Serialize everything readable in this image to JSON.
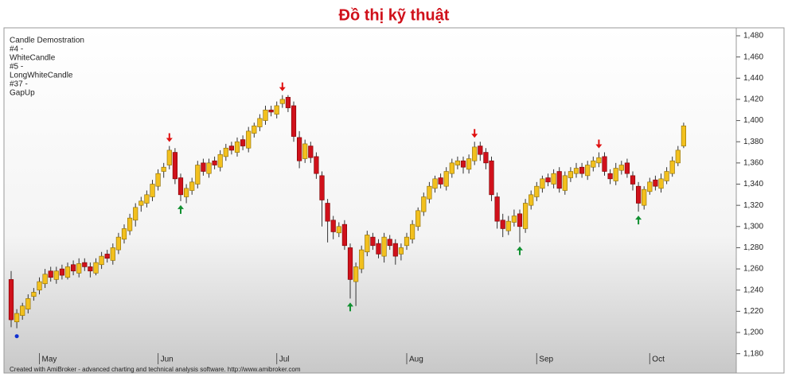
{
  "chart_data": {
    "type": "candlestick",
    "title": "Đồ thị kỹ thuật",
    "legend_text": [
      "Candle Demostration",
      "#4 -",
      "WhiteCandle",
      "#5 -",
      "LongWhiteCandle",
      "#37 -",
      "GapUp"
    ],
    "footer": "Created with AmiBroker - advanced charting and technical analysis software. http://www.amibroker.com",
    "categories": [
      null,
      null,
      null,
      null,
      null,
      "May",
      null,
      null,
      null,
      null,
      null,
      null,
      null,
      null,
      null,
      null,
      null,
      null,
      null,
      null,
      null,
      null,
      null,
      null,
      null,
      null,
      "Jun",
      null,
      null,
      null,
      null,
      null,
      null,
      null,
      null,
      null,
      null,
      null,
      null,
      null,
      null,
      null,
      null,
      null,
      null,
      null,
      null,
      "Jul",
      null,
      null,
      null,
      null,
      null,
      null,
      null,
      null,
      null,
      null,
      null,
      null,
      null,
      null,
      null,
      null,
      null,
      null,
      null,
      null,
      null,
      null,
      "Aug",
      null,
      null,
      null,
      null,
      null,
      null,
      null,
      null,
      null,
      null,
      null,
      null,
      null,
      null,
      null,
      null,
      null,
      null,
      null,
      null,
      null,
      null,
      "Sep",
      null,
      null,
      null,
      null,
      null,
      null,
      null,
      null,
      null,
      null,
      null,
      null,
      null,
      null,
      null,
      null,
      null,
      null,
      null,
      "Oct",
      null,
      null,
      null,
      null,
      null,
      null
    ],
    "open": [
      1250,
      1210,
      1216,
      1222,
      1234,
      1240,
      1246,
      1258,
      1250,
      1260,
      1252,
      1264,
      1256,
      1266,
      1262,
      1256,
      1264,
      1274,
      1268,
      1278,
      1288,
      1296,
      1306,
      1320,
      1322,
      1328,
      1338,
      1352,
      1358,
      1370,
      1346,
      1328,
      1334,
      1340,
      1360,
      1350,
      1362,
      1356,
      1366,
      1376,
      1370,
      1382,
      1374,
      1388,
      1394,
      1400,
      1410,
      1406,
      1416,
      1422,
      1414,
      1384,
      1364,
      1376,
      1366,
      1348,
      1322,
      1306,
      1294,
      1302,
      1280,
      1248,
      1260,
      1276,
      1290,
      1284,
      1272,
      1288,
      1284,
      1274,
      1282,
      1288,
      1300,
      1314,
      1326,
      1336,
      1346,
      1338,
      1350,
      1358,
      1362,
      1354,
      1362,
      1376,
      1370,
      1362,
      1328,
      1306,
      1296,
      1304,
      1312,
      1298,
      1320,
      1328,
      1336,
      1346,
      1340,
      1352,
      1334,
      1346,
      1350,
      1356,
      1348,
      1356,
      1360,
      1366,
      1350,
      1343,
      1353,
      1360,
      1348,
      1338,
      1320,
      1333,
      1344,
      1336,
      1343,
      1350,
      1360,
      1376
    ],
    "high": [
      1258,
      1222,
      1228,
      1236,
      1242,
      1252,
      1260,
      1262,
      1262,
      1264,
      1266,
      1268,
      1270,
      1270,
      1266,
      1270,
      1276,
      1278,
      1284,
      1294,
      1302,
      1312,
      1322,
      1328,
      1334,
      1344,
      1354,
      1360,
      1376,
      1374,
      1350,
      1340,
      1346,
      1362,
      1364,
      1364,
      1366,
      1372,
      1378,
      1380,
      1384,
      1386,
      1394,
      1398,
      1406,
      1414,
      1414,
      1418,
      1424,
      1424,
      1418,
      1390,
      1382,
      1380,
      1370,
      1352,
      1326,
      1310,
      1304,
      1306,
      1284,
      1266,
      1282,
      1296,
      1294,
      1288,
      1294,
      1292,
      1288,
      1284,
      1294,
      1306,
      1318,
      1332,
      1342,
      1348,
      1350,
      1356,
      1364,
      1366,
      1366,
      1368,
      1380,
      1380,
      1374,
      1366,
      1332,
      1312,
      1310,
      1316,
      1316,
      1326,
      1334,
      1342,
      1348,
      1350,
      1354,
      1356,
      1352,
      1356,
      1360,
      1360,
      1362,
      1366,
      1370,
      1370,
      1354,
      1360,
      1362,
      1364,
      1352,
      1342,
      1338,
      1346,
      1348,
      1350,
      1356,
      1366,
      1376,
      1398
    ],
    "low": [
      1205,
      1204,
      1212,
      1218,
      1230,
      1236,
      1242,
      1248,
      1246,
      1250,
      1250,
      1254,
      1252,
      1258,
      1252,
      1254,
      1260,
      1266,
      1264,
      1274,
      1284,
      1292,
      1300,
      1314,
      1318,
      1324,
      1334,
      1346,
      1354,
      1340,
      1324,
      1322,
      1330,
      1336,
      1348,
      1346,
      1354,
      1352,
      1362,
      1368,
      1366,
      1372,
      1370,
      1384,
      1390,
      1396,
      1404,
      1402,
      1412,
      1408,
      1380,
      1355,
      1360,
      1360,
      1345,
      1300,
      1285,
      1288,
      1290,
      1278,
      1232,
      1225,
      1256,
      1272,
      1278,
      1270,
      1266,
      1278,
      1264,
      1268,
      1278,
      1284,
      1296,
      1310,
      1322,
      1332,
      1336,
      1334,
      1346,
      1354,
      1350,
      1350,
      1358,
      1362,
      1354,
      1324,
      1298,
      1290,
      1292,
      1300,
      1285,
      1294,
      1316,
      1324,
      1332,
      1338,
      1336,
      1332,
      1330,
      1342,
      1346,
      1346,
      1344,
      1352,
      1356,
      1348,
      1340,
      1339,
      1349,
      1346,
      1334,
      1314,
      1316,
      1330,
      1334,
      1332,
      1340,
      1347,
      1357,
      1374
    ],
    "close": [
      1212,
      1218,
      1225,
      1232,
      1238,
      1248,
      1255,
      1252,
      1258,
      1254,
      1262,
      1258,
      1265,
      1262,
      1258,
      1266,
      1272,
      1270,
      1280,
      1290,
      1298,
      1308,
      1318,
      1324,
      1330,
      1340,
      1350,
      1356,
      1372,
      1345,
      1330,
      1336,
      1342,
      1358,
      1352,
      1360,
      1358,
      1368,
      1374,
      1372,
      1380,
      1376,
      1390,
      1395,
      1402,
      1410,
      1408,
      1414,
      1420,
      1412,
      1385,
      1362,
      1378,
      1365,
      1350,
      1325,
      1305,
      1295,
      1300,
      1282,
      1250,
      1262,
      1278,
      1292,
      1282,
      1274,
      1290,
      1282,
      1272,
      1280,
      1290,
      1302,
      1315,
      1328,
      1338,
      1345,
      1340,
      1352,
      1360,
      1362,
      1356,
      1364,
      1375,
      1368,
      1360,
      1330,
      1305,
      1298,
      1305,
      1310,
      1300,
      1322,
      1330,
      1338,
      1345,
      1342,
      1350,
      1336,
      1348,
      1352,
      1355,
      1350,
      1358,
      1362,
      1365,
      1352,
      1345,
      1355,
      1358,
      1350,
      1340,
      1322,
      1335,
      1342,
      1338,
      1345,
      1352,
      1362,
      1372,
      1395
    ],
    "signal": [
      null,
      "dot",
      null,
      null,
      null,
      null,
      null,
      null,
      null,
      null,
      null,
      null,
      null,
      null,
      null,
      null,
      null,
      null,
      null,
      null,
      null,
      null,
      null,
      null,
      null,
      null,
      null,
      null,
      "sell",
      null,
      "buy",
      null,
      null,
      null,
      null,
      null,
      null,
      null,
      null,
      null,
      null,
      null,
      null,
      null,
      null,
      null,
      null,
      null,
      "sell",
      null,
      null,
      null,
      null,
      null,
      null,
      null,
      null,
      null,
      null,
      null,
      "buy",
      null,
      null,
      null,
      null,
      null,
      null,
      null,
      null,
      null,
      null,
      null,
      null,
      null,
      null,
      null,
      null,
      null,
      null,
      null,
      null,
      null,
      "sell",
      null,
      null,
      null,
      null,
      null,
      null,
      null,
      "buy",
      null,
      null,
      null,
      null,
      null,
      null,
      null,
      null,
      null,
      null,
      null,
      null,
      null,
      "sell",
      null,
      null,
      null,
      null,
      null,
      null,
      "buy",
      null,
      null,
      null,
      null,
      null,
      null,
      null,
      null
    ],
    "up_color": "#f2c01e",
    "down_color": "#d0111b",
    "ylim": [
      1170,
      1486
    ],
    "yticks": [
      {
        "value": 1180,
        "label": "1,180"
      },
      {
        "value": 1200,
        "label": "1,200"
      },
      {
        "value": 1220,
        "label": "1,220"
      },
      {
        "value": 1240,
        "label": "1,240"
      },
      {
        "value": 1260,
        "label": "1,260"
      },
      {
        "value": 1280,
        "label": "1,280"
      },
      {
        "value": 1300,
        "label": "1,300"
      },
      {
        "value": 1320,
        "label": "1,320"
      },
      {
        "value": 1340,
        "label": "1,340"
      },
      {
        "value": 1360,
        "label": "1,360"
      },
      {
        "value": 1380,
        "label": "1,380"
      },
      {
        "value": 1400,
        "label": "1,400"
      },
      {
        "value": 1420,
        "label": "1,420"
      },
      {
        "value": 1440,
        "label": "1,440"
      },
      {
        "value": 1460,
        "label": "1,460"
      },
      {
        "value": 1480,
        "label": "1,480"
      }
    ]
  }
}
